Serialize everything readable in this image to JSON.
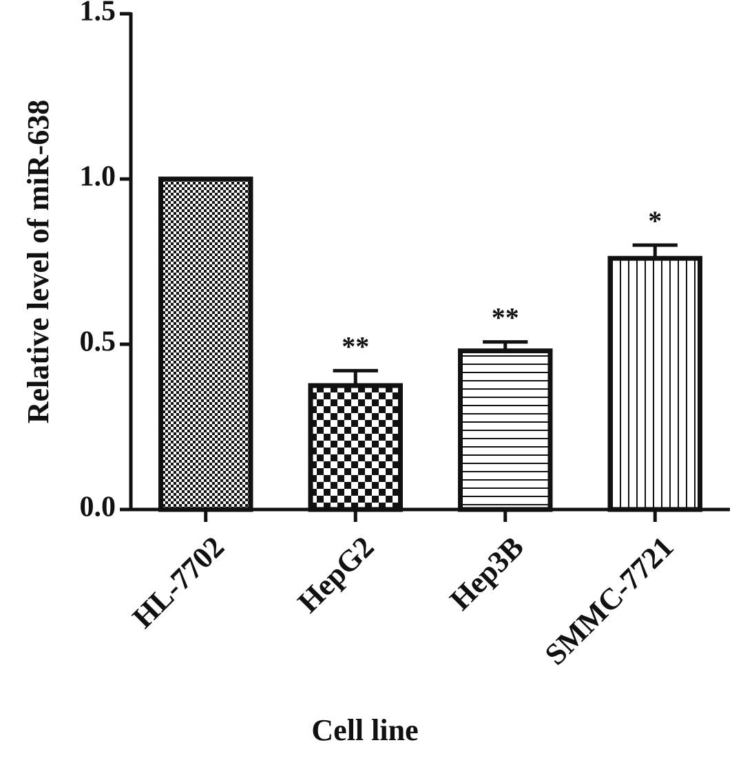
{
  "chart_data": {
    "type": "bar",
    "x_label": "Cell line",
    "y_label": "Relative level of miR-638",
    "categories": [
      "HL-7702",
      "HepG2",
      "Hep3B",
      "SMMC-7721"
    ],
    "values": [
      1.0,
      0.375,
      0.48,
      0.76
    ],
    "errors": [
      0,
      0.045,
      0.027,
      0.04
    ],
    "annotations": [
      null,
      "**",
      "**",
      "*"
    ],
    "color": "#111111",
    "ylim": [
      0,
      1.5
    ],
    "yticks": [
      {
        "value": 0,
        "label": "0.0"
      },
      {
        "value": 0.5,
        "label": "0.5"
      },
      {
        "value": 1,
        "label": "1.0"
      },
      {
        "value": 1.5,
        "label": "1.5"
      }
    ],
    "grid": false
  }
}
